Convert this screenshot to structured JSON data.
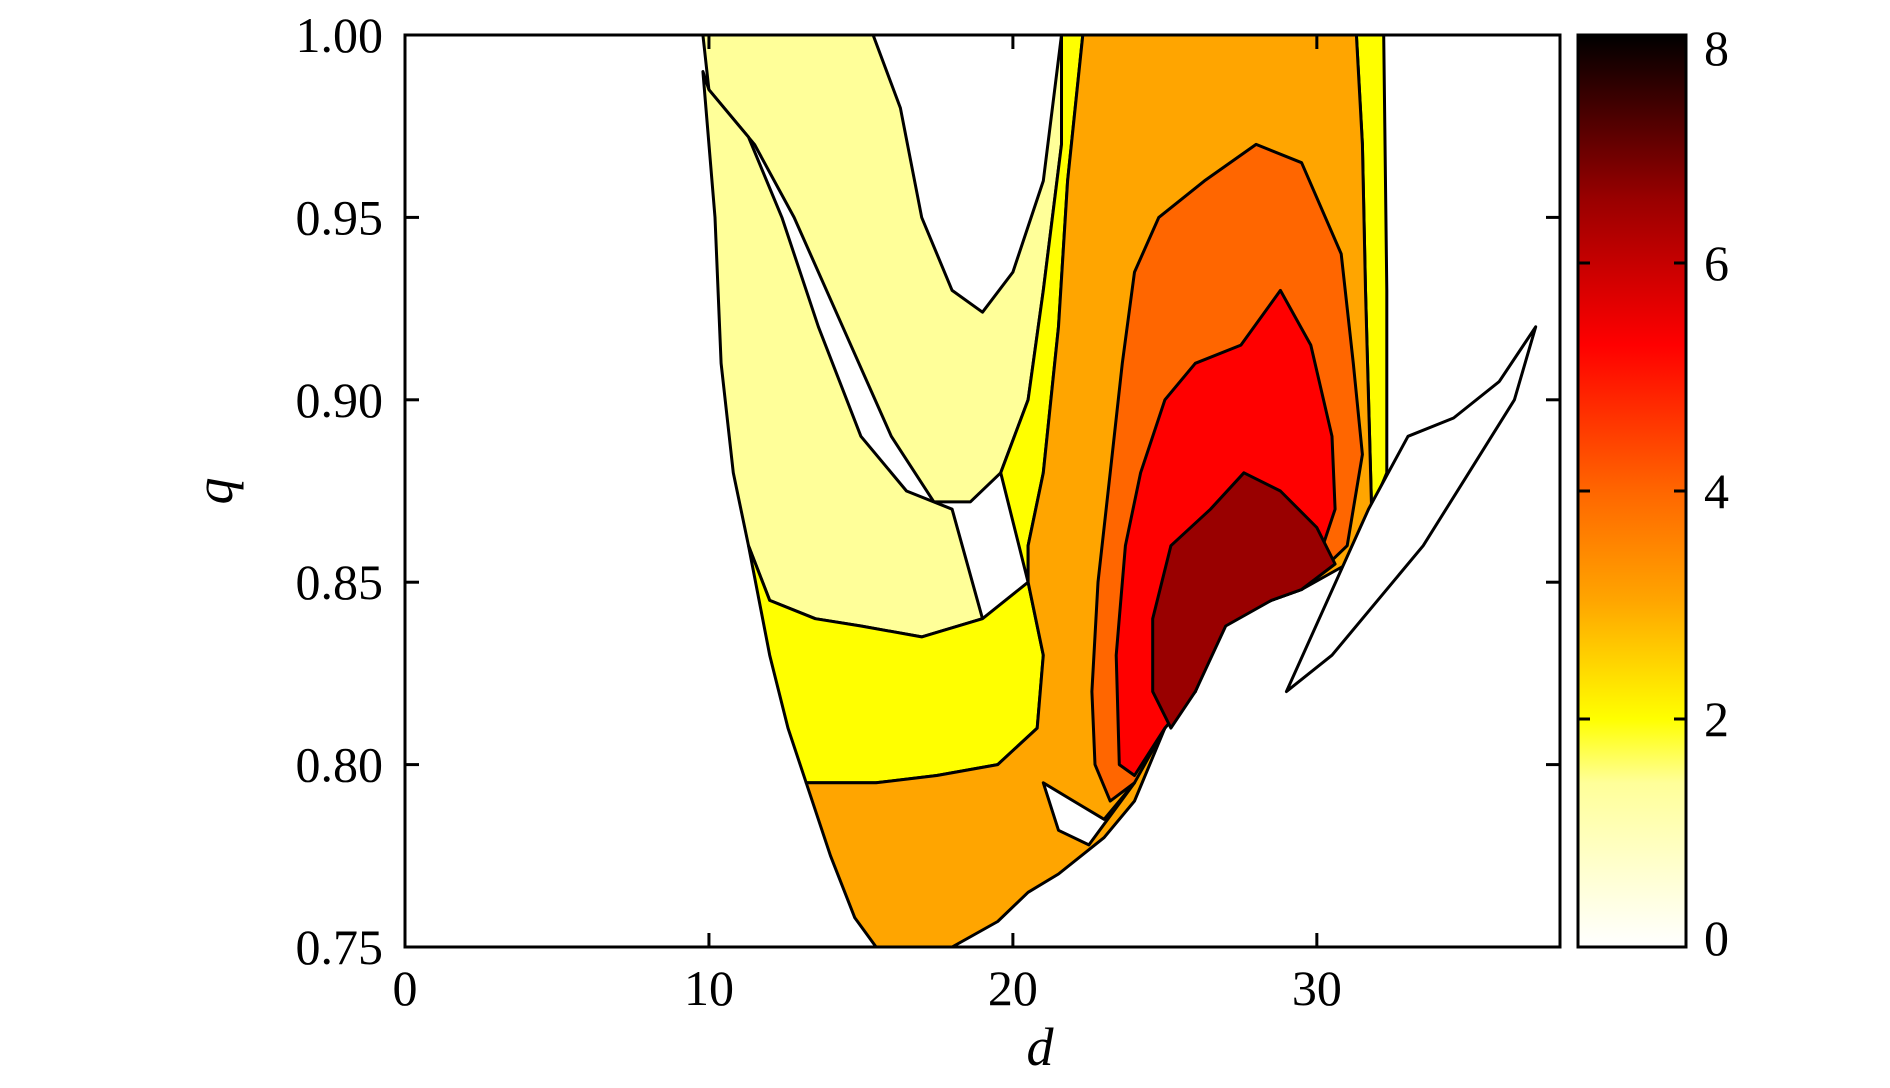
{
  "chart_data": {
    "type": "heatmap",
    "title": "",
    "xlabel": "d",
    "ylabel": "q",
    "xlim": [
      0,
      38
    ],
    "ylim": [
      0.75,
      1.0
    ],
    "x_ticks": [
      {
        "value": 0,
        "label": "0"
      },
      {
        "value": 10,
        "label": "10"
      },
      {
        "value": 20,
        "label": "20"
      },
      {
        "value": 30,
        "label": "30"
      }
    ],
    "y_ticks": [
      {
        "value": 0.75,
        "label": "0.75"
      },
      {
        "value": 0.8,
        "label": "0.80"
      },
      {
        "value": 0.85,
        "label": "0.85"
      },
      {
        "value": 0.9,
        "label": "0.90"
      },
      {
        "value": 0.95,
        "label": "0.95"
      },
      {
        "value": 1.0,
        "label": "1.00"
      }
    ],
    "colorbar": {
      "range": [
        0,
        8
      ],
      "ticks": [
        {
          "value": 0,
          "label": "0"
        },
        {
          "value": 2,
          "label": "2"
        },
        {
          "value": 4,
          "label": "4"
        },
        {
          "value": 6,
          "label": "6"
        },
        {
          "value": 8,
          "label": "8"
        }
      ],
      "colors": [
        "#ffffff",
        "#ffff99",
        "#ffff00",
        "#ffa500",
        "#ff6600",
        "#ff0000",
        "#990000",
        "#000000"
      ]
    },
    "contour_regions": [
      {
        "level": 1,
        "color": "#ffff99",
        "points": [
          [
            9.8,
            1.0
          ],
          [
            15.4,
            1.0
          ],
          [
            16.3,
            0.98
          ],
          [
            17,
            0.95
          ],
          [
            18,
            0.93
          ],
          [
            19,
            0.924
          ],
          [
            20,
            0.935
          ],
          [
            21,
            0.96
          ],
          [
            21.6,
            1.0
          ],
          [
            22.3,
            1.0
          ],
          [
            21.6,
            0.97
          ],
          [
            21,
            0.93
          ],
          [
            20.5,
            0.9
          ],
          [
            19.6,
            0.88
          ],
          [
            18.6,
            0.872
          ],
          [
            17.4,
            0.872
          ],
          [
            16,
            0.89
          ],
          [
            14.4,
            0.92
          ],
          [
            12.8,
            0.95
          ],
          [
            11.5,
            0.97
          ],
          [
            10,
            0.985
          ]
        ]
      },
      {
        "level": 1,
        "color": "#ffff99",
        "points": [
          [
            9.8,
            0.99
          ],
          [
            10.2,
            0.95
          ],
          [
            10.4,
            0.91
          ],
          [
            10.8,
            0.88
          ],
          [
            11.3,
            0.86
          ],
          [
            12,
            0.845
          ],
          [
            13.5,
            0.84
          ],
          [
            15,
            0.838
          ],
          [
            17,
            0.835
          ],
          [
            19,
            0.84
          ],
          [
            18,
            0.87
          ],
          [
            16.5,
            0.875
          ],
          [
            15,
            0.89
          ],
          [
            13.6,
            0.92
          ],
          [
            12.4,
            0.95
          ],
          [
            11.3,
            0.972
          ],
          [
            10,
            0.985
          ]
        ]
      },
      {
        "level": 2,
        "color": "#ffff00",
        "points": [
          [
            11.3,
            0.86
          ],
          [
            12,
            0.845
          ],
          [
            13.5,
            0.84
          ],
          [
            15,
            0.838
          ],
          [
            17,
            0.835
          ],
          [
            19,
            0.84
          ],
          [
            20.5,
            0.85
          ],
          [
            21,
            0.83
          ],
          [
            20.8,
            0.81
          ],
          [
            19.5,
            0.8
          ],
          [
            17.5,
            0.797
          ],
          [
            15.5,
            0.795
          ],
          [
            13.2,
            0.795
          ],
          [
            12.6,
            0.81
          ],
          [
            12,
            0.83
          ]
        ]
      },
      {
        "level": 2,
        "color": "#ffff00",
        "points": [
          [
            21.6,
            1.0
          ],
          [
            22.3,
            1.0
          ],
          [
            21.8,
            0.96
          ],
          [
            21.5,
            0.92
          ],
          [
            21,
            0.88
          ],
          [
            20.5,
            0.86
          ],
          [
            20.5,
            0.85
          ],
          [
            19.6,
            0.88
          ],
          [
            20.5,
            0.9
          ],
          [
            21,
            0.93
          ],
          [
            21.6,
            0.97
          ]
        ]
      },
      {
        "level": 2,
        "color": "#ffff00",
        "points": [
          [
            31.3,
            1.0
          ],
          [
            32.2,
            1.0
          ],
          [
            32.3,
            0.93
          ],
          [
            32.3,
            0.88
          ],
          [
            31.8,
            0.87
          ],
          [
            31.6,
            0.93
          ],
          [
            31.5,
            0.97
          ]
        ]
      },
      {
        "level": 3,
        "color": "#ffa500",
        "points": [
          [
            22.3,
            1.0
          ],
          [
            31.3,
            1.0
          ],
          [
            31.5,
            0.97
          ],
          [
            31.6,
            0.93
          ],
          [
            31.8,
            0.87
          ],
          [
            31,
            0.855
          ],
          [
            29.5,
            0.848
          ],
          [
            28.5,
            0.845
          ],
          [
            27,
            0.84
          ],
          [
            26,
            0.82
          ],
          [
            25,
            0.81
          ],
          [
            24,
            0.79
          ],
          [
            23,
            0.78
          ],
          [
            21.5,
            0.77
          ],
          [
            20.5,
            0.765
          ],
          [
            19.5,
            0.757
          ],
          [
            18,
            0.75
          ],
          [
            15.5,
            0.75
          ],
          [
            14.8,
            0.758
          ],
          [
            14,
            0.775
          ],
          [
            13.2,
            0.795
          ],
          [
            15.5,
            0.795
          ],
          [
            17.5,
            0.797
          ],
          [
            19.5,
            0.8
          ],
          [
            20.8,
            0.81
          ],
          [
            21,
            0.83
          ],
          [
            20.5,
            0.85
          ],
          [
            20.5,
            0.86
          ],
          [
            21,
            0.88
          ],
          [
            21.5,
            0.92
          ],
          [
            21.8,
            0.96
          ]
        ]
      },
      {
        "level": 4,
        "color": "#ff6600",
        "points": [
          [
            24.8,
            0.95
          ],
          [
            26.3,
            0.96
          ],
          [
            28,
            0.97
          ],
          [
            29.5,
            0.965
          ],
          [
            30.8,
            0.94
          ],
          [
            31.2,
            0.91
          ],
          [
            31.5,
            0.885
          ],
          [
            31,
            0.86
          ],
          [
            29.5,
            0.848
          ],
          [
            28.5,
            0.845
          ],
          [
            27,
            0.84
          ],
          [
            26,
            0.82
          ],
          [
            25,
            0.81
          ],
          [
            24,
            0.795
          ],
          [
            23.2,
            0.79
          ],
          [
            22.7,
            0.8
          ],
          [
            22.6,
            0.82
          ],
          [
            22.8,
            0.85
          ],
          [
            23.2,
            0.88
          ],
          [
            23.6,
            0.91
          ],
          [
            24,
            0.935
          ]
        ]
      },
      {
        "level": 5,
        "color": "#ff0000",
        "points": [
          [
            25,
            0.9
          ],
          [
            26,
            0.91
          ],
          [
            27.5,
            0.915
          ],
          [
            28.8,
            0.93
          ],
          [
            29.8,
            0.915
          ],
          [
            30.5,
            0.89
          ],
          [
            30.6,
            0.87
          ],
          [
            30,
            0.855
          ],
          [
            29.5,
            0.848
          ],
          [
            28.5,
            0.845
          ],
          [
            27,
            0.84
          ],
          [
            26,
            0.82
          ],
          [
            25,
            0.81
          ],
          [
            24,
            0.797
          ],
          [
            23.5,
            0.8
          ],
          [
            23.4,
            0.83
          ],
          [
            23.7,
            0.86
          ],
          [
            24.2,
            0.88
          ]
        ]
      },
      {
        "level": 6,
        "color": "#990000",
        "points": [
          [
            25.2,
            0.86
          ],
          [
            26.5,
            0.87
          ],
          [
            27.6,
            0.88
          ],
          [
            28.8,
            0.875
          ],
          [
            30,
            0.865
          ],
          [
            30.6,
            0.855
          ],
          [
            29.5,
            0.848
          ],
          [
            28.5,
            0.845
          ],
          [
            27,
            0.838
          ],
          [
            26,
            0.82
          ],
          [
            25.2,
            0.81
          ],
          [
            24.6,
            0.82
          ],
          [
            24.6,
            0.84
          ]
        ]
      }
    ],
    "white_gap_regions": [
      {
        "level": 0,
        "color": "#ffffff",
        "points": [
          [
            31.7,
            0.87
          ],
          [
            33,
            0.89
          ],
          [
            34.5,
            0.895
          ],
          [
            36,
            0.905
          ],
          [
            37.2,
            0.92
          ],
          [
            36.5,
            0.9
          ],
          [
            35,
            0.88
          ],
          [
            33.5,
            0.86
          ],
          [
            32,
            0.845
          ],
          [
            30.5,
            0.83
          ],
          [
            29,
            0.82
          ]
        ]
      },
      {
        "level": 0,
        "color": "#ffffff",
        "points": [
          [
            21,
            0.795
          ],
          [
            22,
            0.79
          ],
          [
            23,
            0.785
          ],
          [
            24,
            0.795
          ],
          [
            22.5,
            0.778
          ],
          [
            21.5,
            0.782
          ]
        ]
      }
    ]
  }
}
